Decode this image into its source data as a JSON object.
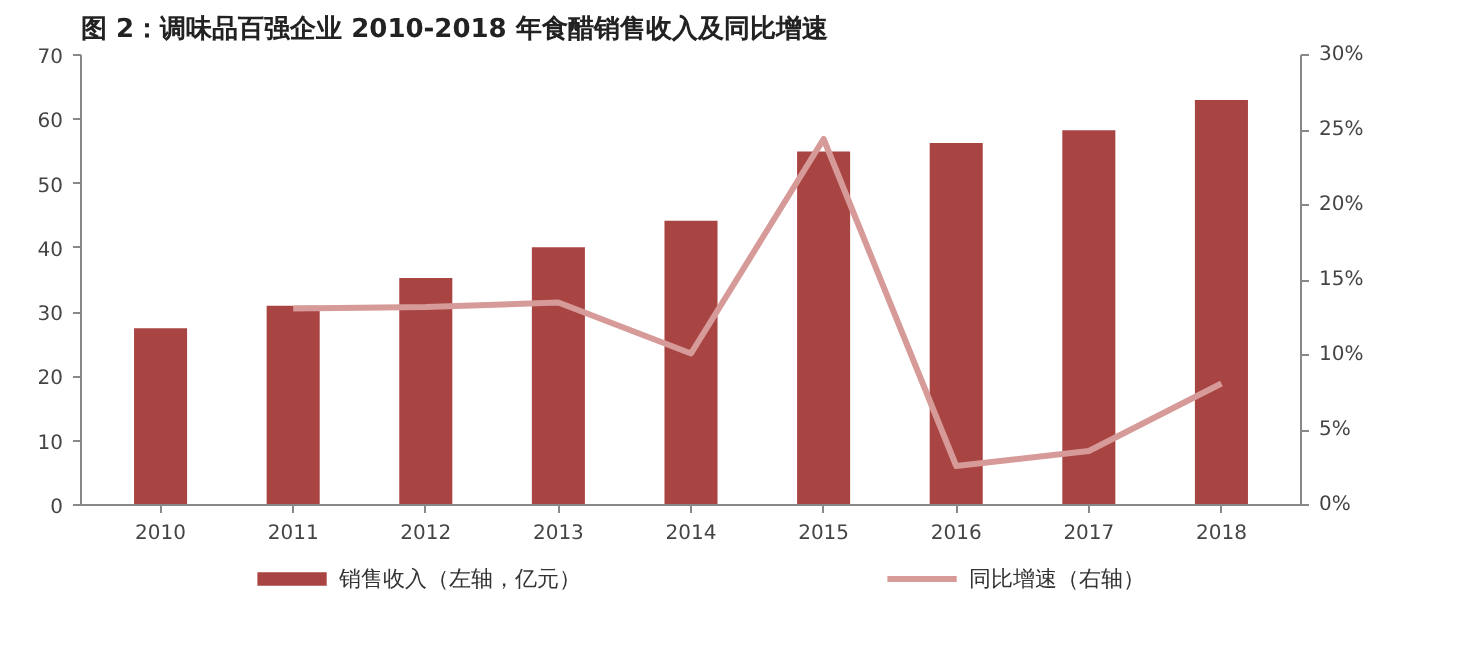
{
  "chart_data": {
    "type": "bar",
    "title": "图 2：调味品百强企业 2010-2018 年食醋销售收入及同比增速",
    "categories": [
      "2010",
      "2011",
      "2012",
      "2013",
      "2014",
      "2015",
      "2016",
      "2017",
      "2018"
    ],
    "series": [
      {
        "name": "销售收入（左轴，亿元）",
        "color": "#a84442",
        "values": [
          27.5,
          31,
          35.3,
          40.1,
          44.2,
          55,
          56.3,
          58.3,
          63
        ]
      },
      {
        "name": "同比增速（右轴）",
        "type": "line",
        "axis": "y2",
        "color": "#d69a98",
        "values": [
          null,
          13.1,
          13.2,
          13.5,
          10.1,
          24.4,
          2.6,
          3.6,
          8.1
        ]
      }
    ],
    "ylim": [
      0,
      70
    ],
    "yticks": [
      0,
      10,
      20,
      30,
      40,
      50,
      60,
      70
    ],
    "y2lim": [
      0,
      30
    ],
    "y2ticks": [
      {
        "value": 0,
        "label": "0%"
      },
      {
        "value": 5,
        "label": "5%"
      },
      {
        "value": 10,
        "label": "10%"
      },
      {
        "value": 15,
        "label": "15%"
      },
      {
        "value": 20,
        "label": "20%"
      },
      {
        "value": 25,
        "label": "25%"
      },
      {
        "value": 30,
        "label": "30%"
      }
    ],
    "legend": "bottom",
    "grid": false
  }
}
